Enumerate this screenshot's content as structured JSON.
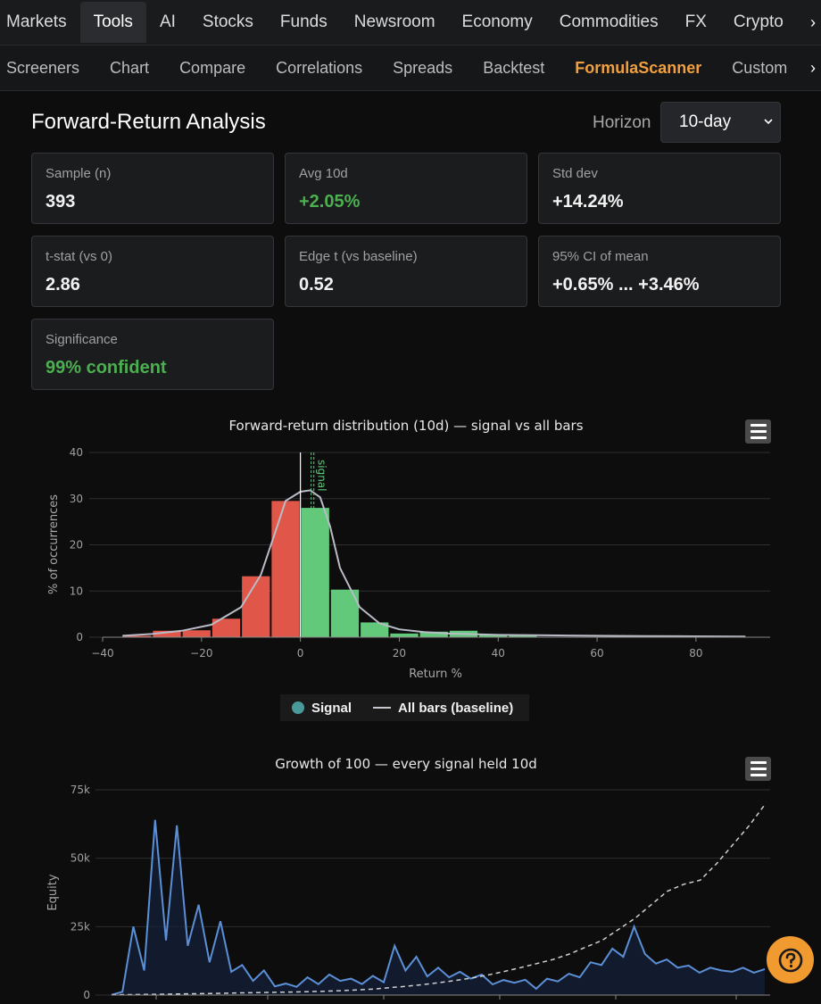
{
  "nav_primary": {
    "items": [
      "Markets",
      "Tools",
      "AI",
      "Stocks",
      "Funds",
      "Newsroom",
      "Economy",
      "Commodities",
      "FX",
      "Crypto"
    ],
    "active": "Tools"
  },
  "nav_secondary": {
    "items": [
      "Screeners",
      "Chart",
      "Compare",
      "Correlations",
      "Spreads",
      "Backtest",
      "FormulaScanner",
      "Custom"
    ],
    "active": "FormulaScanner"
  },
  "header": {
    "title": "Forward-Return Analysis",
    "horizon_label": "Horizon",
    "horizon_value": "10-day"
  },
  "stats": {
    "sample": {
      "label": "Sample (n)",
      "value": "393"
    },
    "avg": {
      "label": "Avg 10d",
      "value": "+2.05%"
    },
    "std": {
      "label": "Std dev",
      "value": "+14.24%"
    },
    "tstat": {
      "label": "t-stat (vs 0)",
      "value": "2.86"
    },
    "edge": {
      "label": "Edge t (vs baseline)",
      "value": "0.52"
    },
    "ci": {
      "label": "95% CI of mean",
      "value": "+0.65% ... +3.46%"
    },
    "significance": {
      "label": "Significance",
      "value": "99% confident"
    }
  },
  "colors": {
    "positive": "#4caf50",
    "bar_negative": "#e0574a",
    "bar_positive": "#62c97a",
    "baseline_line": "#b9bcc6",
    "equity_line": "#5b8fd6",
    "accent": "#f0a040"
  },
  "legend": {
    "signal": "Signal",
    "baseline": "All bars (baseline)"
  },
  "chart_data": [
    {
      "type": "bar",
      "title": "Forward-return distribution (10d) — signal vs all bars",
      "xlabel": "Return %",
      "ylabel": "% of occurrences",
      "xlim": [
        -40,
        95
      ],
      "ylim": [
        0,
        40
      ],
      "x_ticks": [
        "−40",
        "−20",
        "0",
        "20",
        "40",
        "60",
        "80"
      ],
      "y_ticks": [
        "0",
        "10",
        "20",
        "30",
        "40"
      ],
      "bin_width": 6,
      "bins": [
        {
          "x0": -36,
          "value": 0.3
        },
        {
          "x0": -30,
          "value": 1.4
        },
        {
          "x0": -24,
          "value": 1.5
        },
        {
          "x0": -18,
          "value": 4.0
        },
        {
          "x0": -12,
          "value": 13.2
        },
        {
          "x0": -6,
          "value": 29.5
        },
        {
          "x0": 0,
          "value": 28.0
        },
        {
          "x0": 6,
          "value": 10.3
        },
        {
          "x0": 12,
          "value": 3.2
        },
        {
          "x0": 18,
          "value": 0.8
        },
        {
          "x0": 24,
          "value": 1.2
        },
        {
          "x0": 30,
          "value": 1.4
        },
        {
          "x0": 36,
          "value": 0.6
        },
        {
          "x0": 42,
          "value": 0.3
        }
      ],
      "series": [
        {
          "name": "Signal",
          "type": "bar"
        },
        {
          "name": "All bars (baseline)",
          "type": "line",
          "x": [
            -36,
            -30,
            -24,
            -18,
            -12,
            -8,
            -5,
            -3,
            0,
            2,
            4,
            6,
            8,
            12,
            16,
            20,
            25,
            30,
            40,
            50,
            60,
            70,
            80,
            90
          ],
          "y": [
            0.3,
            0.7,
            1.4,
            2.7,
            6.5,
            13.5,
            23.0,
            29.5,
            31.5,
            31.8,
            30.3,
            24.0,
            15.0,
            6.5,
            3.0,
            1.7,
            1.1,
            0.8,
            0.5,
            0.4,
            0.3,
            0.25,
            0.2,
            0.15
          ]
        }
      ],
      "annotations": [
        {
          "text": "signal",
          "x": 2
        }
      ],
      "zero_line_x": 0,
      "grid": true
    },
    {
      "type": "line",
      "title": "Growth of 100 — every signal held 10d",
      "ylabel": "Equity",
      "ylim": [
        0,
        75000
      ],
      "y_ticks": [
        "0",
        "25k",
        "50k",
        "75k"
      ],
      "series": [
        {
          "name": "Equity",
          "style": "solid",
          "values": [
            100,
            1200,
            25000,
            9000,
            64000,
            20000,
            62000,
            18000,
            33000,
            12000,
            27000,
            8500,
            11000,
            5200,
            9000,
            3200,
            4200,
            3000,
            6500,
            4000,
            7500,
            5200,
            6000,
            4000,
            7000,
            4700,
            18000,
            9000,
            14000,
            6800,
            10000,
            6500,
            8500,
            6000,
            7500,
            3900,
            5500,
            4500,
            5600,
            2300,
            6000,
            5000,
            7800,
            6500,
            12000,
            11000,
            17000,
            14000,
            25000,
            15000,
            11500,
            13000,
            10000,
            10800,
            8200,
            10000,
            9000,
            8500,
            10000,
            8200,
            9500
          ]
        },
        {
          "name": "Baseline",
          "style": "dashed",
          "values": [
            100,
            150,
            220,
            300,
            400,
            500,
            600,
            700,
            800,
            900,
            1000,
            1100,
            1250,
            1400,
            1600,
            1900,
            2200,
            2700,
            3200,
            3800,
            4500,
            5300,
            6200,
            7300,
            8600,
            10000,
            11500,
            13000,
            15000,
            17500,
            20000,
            24000,
            28000,
            33000,
            38000,
            40500,
            42000,
            48000,
            55000,
            62000,
            70000
          ]
        }
      ],
      "grid": true
    }
  ]
}
